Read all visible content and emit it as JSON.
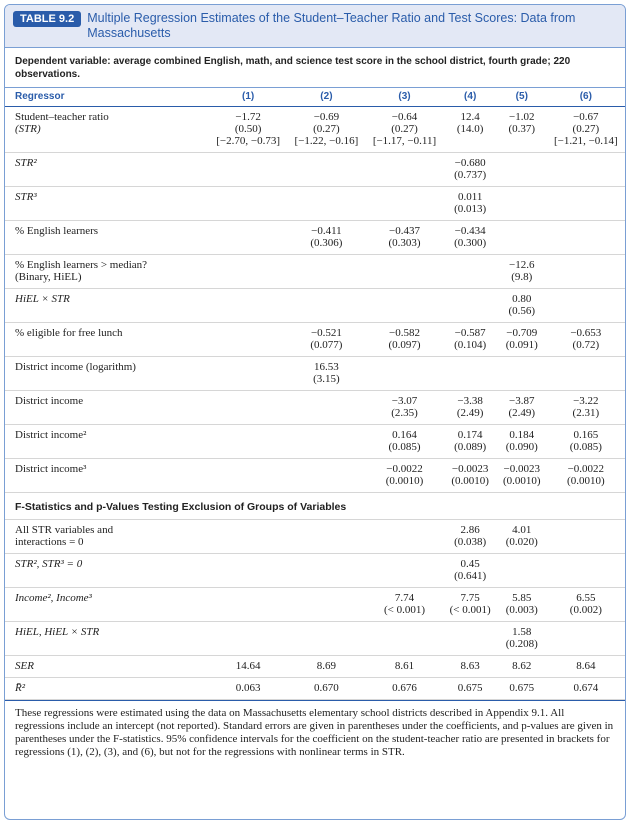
{
  "header": {
    "label": "TABLE 9.2",
    "title": "Multiple Regression Estimates of the Student–Teacher Ratio and Test Scores: Data from Massachusetts"
  },
  "dependent": "Dependent variable: average combined English, math, and science test score in the school district, fourth grade; 220 observations.",
  "table": {
    "columns": [
      "Regressor",
      "(1)",
      "(2)",
      "(3)",
      "(4)",
      "(5)",
      "(6)"
    ],
    "rows": [
      {
        "label": [
          "Student–teacher ratio",
          "(STR)"
        ],
        "cells": [
          [
            "−1.72",
            "(0.50)",
            "[−2.70, −0.73]"
          ],
          [
            "−0.69",
            "(0.27)",
            "[−1.22, −0.16]"
          ],
          [
            "−0.64",
            "(0.27)",
            "[−1.17, −0.11]"
          ],
          [
            "12.4",
            "(14.0)"
          ],
          [
            "−1.02",
            "(0.37)"
          ],
          [
            "−0.67",
            "(0.27)",
            "[−1.21, −0.14]"
          ]
        ]
      },
      {
        "label": [
          "STR²"
        ],
        "cells": [
          [],
          [],
          [],
          [
            "−0.680",
            "(0.737)"
          ],
          [],
          []
        ]
      },
      {
        "label": [
          "STR³"
        ],
        "cells": [
          [],
          [],
          [],
          [
            "0.011",
            "(0.013)"
          ],
          [],
          []
        ]
      },
      {
        "label": [
          "% English learners"
        ],
        "cells": [
          [],
          [
            "−0.411",
            "(0.306)"
          ],
          [
            "−0.437",
            "(0.303)"
          ],
          [
            "−0.434",
            "(0.300)"
          ],
          [],
          []
        ]
      },
      {
        "label": [
          "% English learners > median?",
          "(Binary, HiEL)"
        ],
        "cells": [
          [],
          [],
          [],
          [],
          [
            "−12.6",
            "(9.8)"
          ],
          []
        ]
      },
      {
        "label": [
          "HiEL × STR"
        ],
        "cells": [
          [],
          [],
          [],
          [],
          [
            "0.80",
            "(0.56)"
          ],
          []
        ]
      },
      {
        "label": [
          "% eligible for free lunch"
        ],
        "cells": [
          [],
          [
            "−0.521",
            "(0.077)"
          ],
          [
            "−0.582",
            "(0.097)"
          ],
          [
            "−0.587",
            "(0.104)"
          ],
          [
            "−0.709",
            "(0.091)"
          ],
          [
            "−0.653",
            "(0.72)"
          ]
        ]
      },
      {
        "label": [
          "District income (logarithm)"
        ],
        "cells": [
          [],
          [
            "16.53",
            "(3.15)"
          ],
          [],
          [],
          [],
          []
        ]
      },
      {
        "label": [
          "District income"
        ],
        "cells": [
          [],
          [],
          [
            "−3.07",
            "(2.35)"
          ],
          [
            "−3.38",
            "(2.49)"
          ],
          [
            "−3.87",
            "(2.49)"
          ],
          [
            "−3.22",
            "(2.31)"
          ]
        ]
      },
      {
        "label": [
          "District income²"
        ],
        "cells": [
          [],
          [],
          [
            "0.164",
            "(0.085)"
          ],
          [
            "0.174",
            "(0.089)"
          ],
          [
            "0.184",
            "(0.090)"
          ],
          [
            "0.165",
            "(0.085)"
          ]
        ]
      },
      {
        "label": [
          "District income³"
        ],
        "cells": [
          [],
          [],
          [
            "−0.0022",
            "(0.0010)"
          ],
          [
            "−0.0023",
            "(0.0010)"
          ],
          [
            "−0.0023",
            "(0.0010)"
          ],
          [
            "−0.0022",
            "(0.0010)"
          ]
        ]
      }
    ],
    "section": "F-Statistics and p-Values Testing Exclusion of Groups of Variables",
    "f_rows": [
      {
        "label": [
          "All STR variables and",
          "interactions = 0"
        ],
        "cells": [
          [],
          [],
          [],
          [
            "2.86",
            "(0.038)"
          ],
          [
            "4.01",
            "(0.020)"
          ],
          []
        ]
      },
      {
        "label": [
          "STR², STR³ = 0"
        ],
        "cells": [
          [],
          [],
          [],
          [
            "0.45",
            "(0.641)"
          ],
          [],
          []
        ]
      },
      {
        "label": [
          "Income², Income³"
        ],
        "cells": [
          [],
          [],
          [
            "7.74",
            "(< 0.001)"
          ],
          [
            "7.75",
            "(< 0.001)"
          ],
          [
            "5.85",
            "(0.003)"
          ],
          [
            "6.55",
            "(0.002)"
          ]
        ]
      },
      {
        "label": [
          "HiEL, HiEL × STR"
        ],
        "cells": [
          [],
          [],
          [],
          [],
          [
            "1.58",
            "(0.208)"
          ],
          []
        ]
      }
    ],
    "stats": [
      {
        "label": [
          "SER"
        ],
        "cells": [
          [
            "14.64"
          ],
          [
            "8.69"
          ],
          [
            "8.61"
          ],
          [
            "8.63"
          ],
          [
            "8.62"
          ],
          [
            "8.64"
          ]
        ]
      },
      {
        "label": [
          "R̄²"
        ],
        "cells": [
          [
            "0.063"
          ],
          [
            "0.670"
          ],
          [
            "0.676"
          ],
          [
            "0.675"
          ],
          [
            "0.675"
          ],
          [
            "0.674"
          ]
        ]
      }
    ]
  },
  "footnote": "These regressions were estimated using the data on Massachusetts elementary school districts described in Appendix 9.1. All regressions include an intercept (not reported). Standard errors are given in parentheses under the coefficients, and p-values are given in parentheses under the F-statistics. 95% confidence intervals for the coefficient on the student-teacher ratio are presented in brackets for regressions (1), (2), (3), and (6), but not for the regressions with nonlinear terms in STR."
}
